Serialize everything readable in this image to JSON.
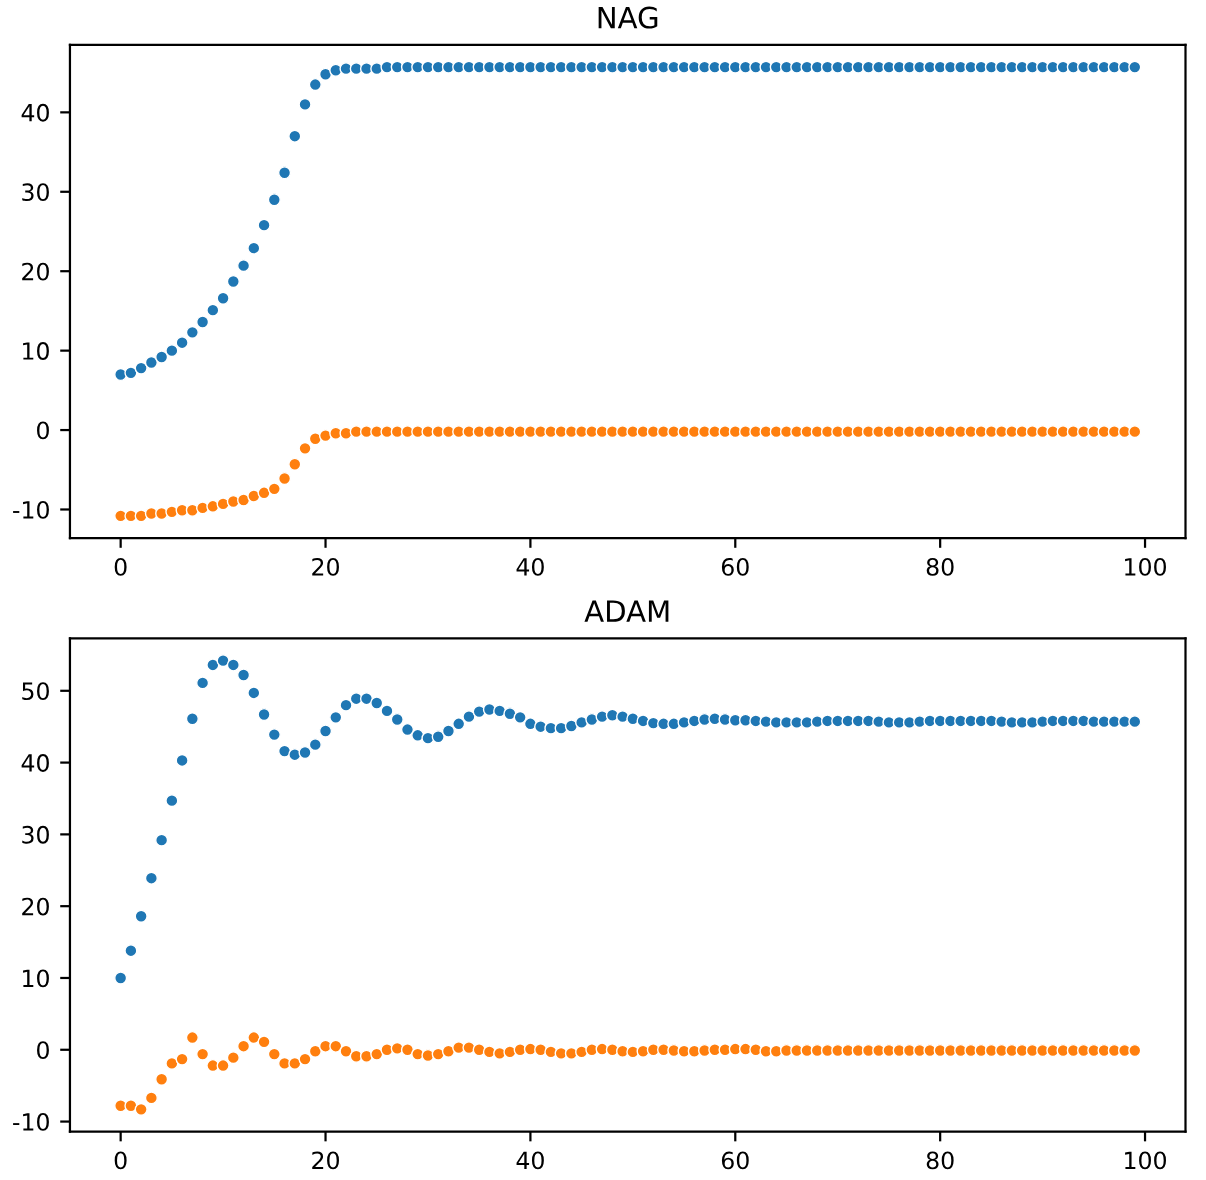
{
  "chart_data": [
    {
      "type": "scatter",
      "title": "NAG",
      "x": [
        0,
        1,
        2,
        3,
        4,
        5,
        6,
        7,
        8,
        9,
        10,
        11,
        12,
        13,
        14,
        15,
        16,
        17,
        18,
        19,
        20,
        21,
        22,
        23,
        24,
        25,
        26,
        27,
        28,
        29,
        30,
        31,
        32,
        33,
        34,
        35,
        36,
        37,
        38,
        39,
        40,
        41,
        42,
        43,
        44,
        45,
        46,
        47,
        48,
        49,
        50,
        51,
        52,
        53,
        54,
        55,
        56,
        57,
        58,
        59,
        60,
        61,
        62,
        63,
        64,
        65,
        66,
        67,
        68,
        69,
        70,
        71,
        72,
        73,
        74,
        75,
        76,
        77,
        78,
        79,
        80,
        81,
        82,
        83,
        84,
        85,
        86,
        87,
        88,
        89,
        90,
        91,
        92,
        93,
        94,
        95,
        96,
        97,
        98,
        99
      ],
      "xlim": [
        -4.95,
        103.95
      ],
      "xticks": [
        0,
        20,
        40,
        60,
        80,
        100
      ],
      "ylim": [
        -13.6,
        48.5
      ],
      "yticks": [
        -10,
        0,
        10,
        20,
        30,
        40
      ],
      "marker": "circle",
      "grid": false,
      "series": [
        {
          "color": "#1f77b4",
          "values": [
            7,
            7.2,
            7.8,
            8.5,
            9.2,
            10,
            11,
            12.3,
            13.6,
            15.1,
            16.6,
            18.7,
            20.7,
            22.9,
            25.8,
            29,
            32.4,
            37,
            41,
            43.5,
            44.8,
            45.3,
            45.5,
            45.5,
            45.5,
            45.5,
            45.7,
            45.7,
            45.7,
            45.7,
            45.7,
            45.7,
            45.7,
            45.7,
            45.7,
            45.7,
            45.7,
            45.7,
            45.7,
            45.7,
            45.7,
            45.7,
            45.7,
            45.7,
            45.7,
            45.7,
            45.7,
            45.7,
            45.7,
            45.7,
            45.7,
            45.7,
            45.7,
            45.7,
            45.7,
            45.7,
            45.7,
            45.7,
            45.7,
            45.7,
            45.7,
            45.7,
            45.7,
            45.7,
            45.7,
            45.7,
            45.7,
            45.7,
            45.7,
            45.7,
            45.7,
            45.7,
            45.7,
            45.7,
            45.7,
            45.7,
            45.7,
            45.7,
            45.7,
            45.7,
            45.7,
            45.7,
            45.7,
            45.7,
            45.7,
            45.7,
            45.7,
            45.7,
            45.7,
            45.7,
            45.7,
            45.7,
            45.7,
            45.7,
            45.7,
            45.7,
            45.7,
            45.7,
            45.7,
            45.7
          ]
        },
        {
          "color": "#ff7f0e",
          "values": [
            -10.8,
            -10.8,
            -10.8,
            -10.5,
            -10.5,
            -10.3,
            -10.1,
            -10.1,
            -9.8,
            -9.6,
            -9.3,
            -9,
            -8.8,
            -8.3,
            -7.9,
            -7.4,
            -6.1,
            -4.3,
            -2.3,
            -1.1,
            -0.7,
            -0.4,
            -0.4,
            -0.2,
            -0.2,
            -0.2,
            -0.2,
            -0.2,
            -0.2,
            -0.2,
            -0.2,
            -0.2,
            -0.2,
            -0.2,
            -0.2,
            -0.2,
            -0.2,
            -0.2,
            -0.2,
            -0.2,
            -0.2,
            -0.2,
            -0.2,
            -0.2,
            -0.2,
            -0.2,
            -0.2,
            -0.2,
            -0.2,
            -0.2,
            -0.2,
            -0.2,
            -0.2,
            -0.2,
            -0.2,
            -0.2,
            -0.2,
            -0.2,
            -0.2,
            -0.2,
            -0.2,
            -0.2,
            -0.2,
            -0.2,
            -0.2,
            -0.2,
            -0.2,
            -0.2,
            -0.2,
            -0.2,
            -0.2,
            -0.2,
            -0.2,
            -0.2,
            -0.2,
            -0.2,
            -0.2,
            -0.2,
            -0.2,
            -0.2,
            -0.2,
            -0.2,
            -0.2,
            -0.2,
            -0.2,
            -0.2,
            -0.2,
            -0.2,
            -0.2,
            -0.2,
            -0.2,
            -0.2,
            -0.2,
            -0.2,
            -0.2,
            -0.2,
            -0.2,
            -0.2,
            -0.2,
            -0.2
          ]
        }
      ]
    },
    {
      "type": "scatter",
      "title": "ADAM",
      "x": [
        0,
        1,
        2,
        3,
        4,
        5,
        6,
        7,
        8,
        9,
        10,
        11,
        12,
        13,
        14,
        15,
        16,
        17,
        18,
        19,
        20,
        21,
        22,
        23,
        24,
        25,
        26,
        27,
        28,
        29,
        30,
        31,
        32,
        33,
        34,
        35,
        36,
        37,
        38,
        39,
        40,
        41,
        42,
        43,
        44,
        45,
        46,
        47,
        48,
        49,
        50,
        51,
        52,
        53,
        54,
        55,
        56,
        57,
        58,
        59,
        60,
        61,
        62,
        63,
        64,
        65,
        66,
        67,
        68,
        69,
        70,
        71,
        72,
        73,
        74,
        75,
        76,
        77,
        78,
        79,
        80,
        81,
        82,
        83,
        84,
        85,
        86,
        87,
        88,
        89,
        90,
        91,
        92,
        93,
        94,
        95,
        96,
        97,
        98,
        99
      ],
      "xlim": [
        -4.95,
        103.95
      ],
      "xticks": [
        0,
        20,
        40,
        60,
        80,
        100
      ],
      "ylim": [
        -11.4,
        57.3
      ],
      "yticks": [
        -10,
        0,
        10,
        20,
        30,
        40,
        50
      ],
      "marker": "circle",
      "grid": false,
      "series": [
        {
          "color": "#1f77b4",
          "values": [
            10,
            13.8,
            18.6,
            23.9,
            29.2,
            34.7,
            40.3,
            46.1,
            51.1,
            53.6,
            54.2,
            53.6,
            52.2,
            49.7,
            46.7,
            43.9,
            41.6,
            41.1,
            41.4,
            42.5,
            44.4,
            46.3,
            48.0,
            48.9,
            48.9,
            48.3,
            47.2,
            46,
            44.6,
            43.8,
            43.4,
            43.6,
            44.4,
            45.4,
            46.4,
            47.1,
            47.4,
            47.2,
            46.8,
            46.3,
            45.4,
            45,
            44.8,
            44.8,
            45.1,
            45.6,
            46,
            46.4,
            46.6,
            46.4,
            46.1,
            45.8,
            45.5,
            45.4,
            45.4,
            45.6,
            45.8,
            46,
            46.1,
            46,
            45.9,
            45.9,
            45.8,
            45.7,
            45.6,
            45.6,
            45.6,
            45.6,
            45.7,
            45.8,
            45.8,
            45.8,
            45.8,
            45.8,
            45.7,
            45.6,
            45.6,
            45.6,
            45.7,
            45.8,
            45.8,
            45.8,
            45.8,
            45.8,
            45.8,
            45.8,
            45.7,
            45.6,
            45.6,
            45.6,
            45.7,
            45.8,
            45.8,
            45.8,
            45.8,
            45.7,
            45.7,
            45.7,
            45.7,
            45.7
          ]
        },
        {
          "color": "#ff7f0e",
          "values": [
            -7.8,
            -7.8,
            -8.3,
            -6.7,
            -4.1,
            -1.9,
            -1.3,
            1.7,
            -0.6,
            -2.2,
            -2.2,
            -1.1,
            0.5,
            1.7,
            1.1,
            -0.6,
            -1.9,
            -1.9,
            -1.3,
            -0.2,
            0.5,
            0.5,
            -0.2,
            -0.9,
            -0.9,
            -0.6,
            0,
            0.2,
            0,
            -0.6,
            -0.8,
            -0.6,
            -0.2,
            0.3,
            0.3,
            0,
            -0.3,
            -0.5,
            -0.3,
            0,
            0.1,
            0,
            -0.3,
            -0.5,
            -0.5,
            -0.3,
            0,
            0.1,
            0,
            -0.2,
            -0.3,
            -0.2,
            0,
            0,
            -0.1,
            -0.2,
            -0.2,
            -0.1,
            0,
            0,
            0.1,
            0.1,
            0,
            -0.2,
            -0.2,
            -0.1,
            -0.1,
            -0.1,
            -0.1,
            -0.1,
            -0.1,
            -0.1,
            -0.1,
            -0.1,
            -0.1,
            -0.1,
            -0.1,
            -0.1,
            -0.1,
            -0.1,
            -0.1,
            -0.1,
            -0.1,
            -0.1,
            -0.1,
            -0.1,
            -0.1,
            -0.1,
            -0.1,
            -0.1,
            -0.1,
            -0.1,
            -0.1,
            -0.1,
            -0.1,
            -0.1,
            -0.1,
            -0.1,
            -0.1,
            -0.1
          ]
        }
      ]
    }
  ]
}
